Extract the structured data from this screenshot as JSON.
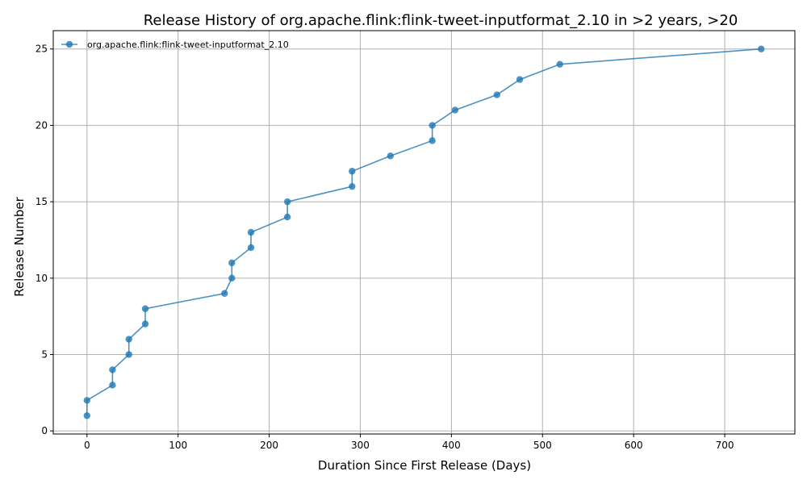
{
  "chart_data": {
    "type": "line",
    "title": "Release History of org.apache.flink:flink-tweet-inputformat_2.10 in >2 years, >20",
    "xlabel": "Duration Since First Release (Days)",
    "ylabel": "Release Number",
    "xlim": [
      -37,
      777
    ],
    "ylim": [
      -0.2,
      26.2
    ],
    "xticks": [
      0,
      100,
      200,
      300,
      400,
      500,
      600,
      700
    ],
    "yticks": [
      0,
      5,
      10,
      15,
      20,
      25
    ],
    "grid": true,
    "legend_position": "top-left",
    "series": [
      {
        "name": "org.apache.flink:flink-tweet-inputformat_2.10",
        "color": "#1f77b4",
        "marker": "circle",
        "x": [
          0,
          0,
          28,
          28,
          46,
          46,
          64,
          64,
          151,
          159,
          159,
          180,
          180,
          220,
          220,
          291,
          291,
          333,
          379,
          379,
          404,
          450,
          475,
          519,
          740
        ],
        "y": [
          1,
          2,
          3,
          4,
          5,
          6,
          7,
          8,
          9,
          10,
          11,
          12,
          13,
          14,
          15,
          16,
          17,
          18,
          19,
          20,
          21,
          22,
          23,
          24,
          25
        ]
      }
    ]
  }
}
